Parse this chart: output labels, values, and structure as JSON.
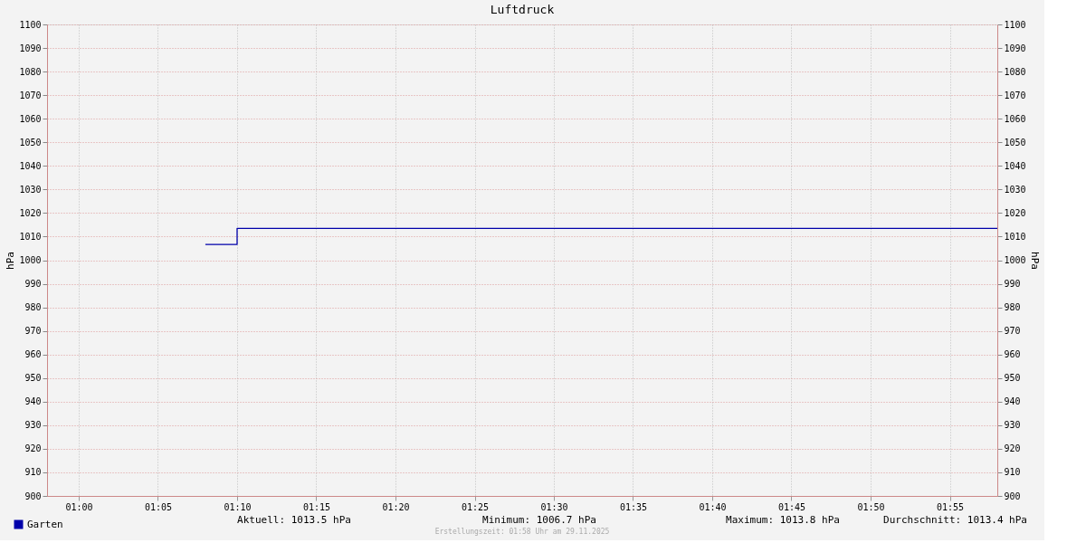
{
  "chart_data": {
    "type": "step",
    "title": "Luftdruck",
    "ylabel": "hPa",
    "y2label": "hPa",
    "x": [
      1.1333,
      1.1667,
      1.9667
    ],
    "series": [
      {
        "name": "Garten",
        "color": "#0000aa",
        "values": [
          1006.7,
          1013.5,
          1013.5
        ]
      }
    ],
    "xlim": [
      0.9667,
      1.9667
    ],
    "xticks": [
      {
        "value": 1.0,
        "label": "01:00"
      },
      {
        "value": 1.0833,
        "label": "01:05"
      },
      {
        "value": 1.1667,
        "label": "01:10"
      },
      {
        "value": 1.25,
        "label": "01:15"
      },
      {
        "value": 1.3333,
        "label": "01:20"
      },
      {
        "value": 1.4167,
        "label": "01:25"
      },
      {
        "value": 1.5,
        "label": "01:30"
      },
      {
        "value": 1.5833,
        "label": "01:35"
      },
      {
        "value": 1.6667,
        "label": "01:40"
      },
      {
        "value": 1.75,
        "label": "01:45"
      },
      {
        "value": 1.8333,
        "label": "01:50"
      },
      {
        "value": 1.9167,
        "label": "01:55"
      }
    ],
    "ylim": [
      900,
      1100
    ],
    "yticks": [
      900,
      910,
      920,
      930,
      940,
      950,
      960,
      970,
      980,
      990,
      1000,
      1010,
      1020,
      1030,
      1040,
      1050,
      1060,
      1070,
      1080,
      1090,
      1100
    ],
    "y2lim": [
      900,
      1100
    ],
    "y2ticks": [
      900,
      910,
      920,
      930,
      940,
      950,
      960,
      970,
      980,
      990,
      1000,
      1010,
      1020,
      1030,
      1040,
      1050,
      1060,
      1070,
      1080,
      1090,
      1100
    ],
    "grid": true,
    "legend": "bottom left",
    "annotations": [
      "Aktuell: 1013.5 hPa",
      "Minimum: 1006.7 hPa",
      "Maximum: 1013.8 hPa",
      "Durchschnitt: 1013.4 hPa",
      "Erstellungszeit: 01:58 Uhr am 29.11.2025"
    ]
  }
}
